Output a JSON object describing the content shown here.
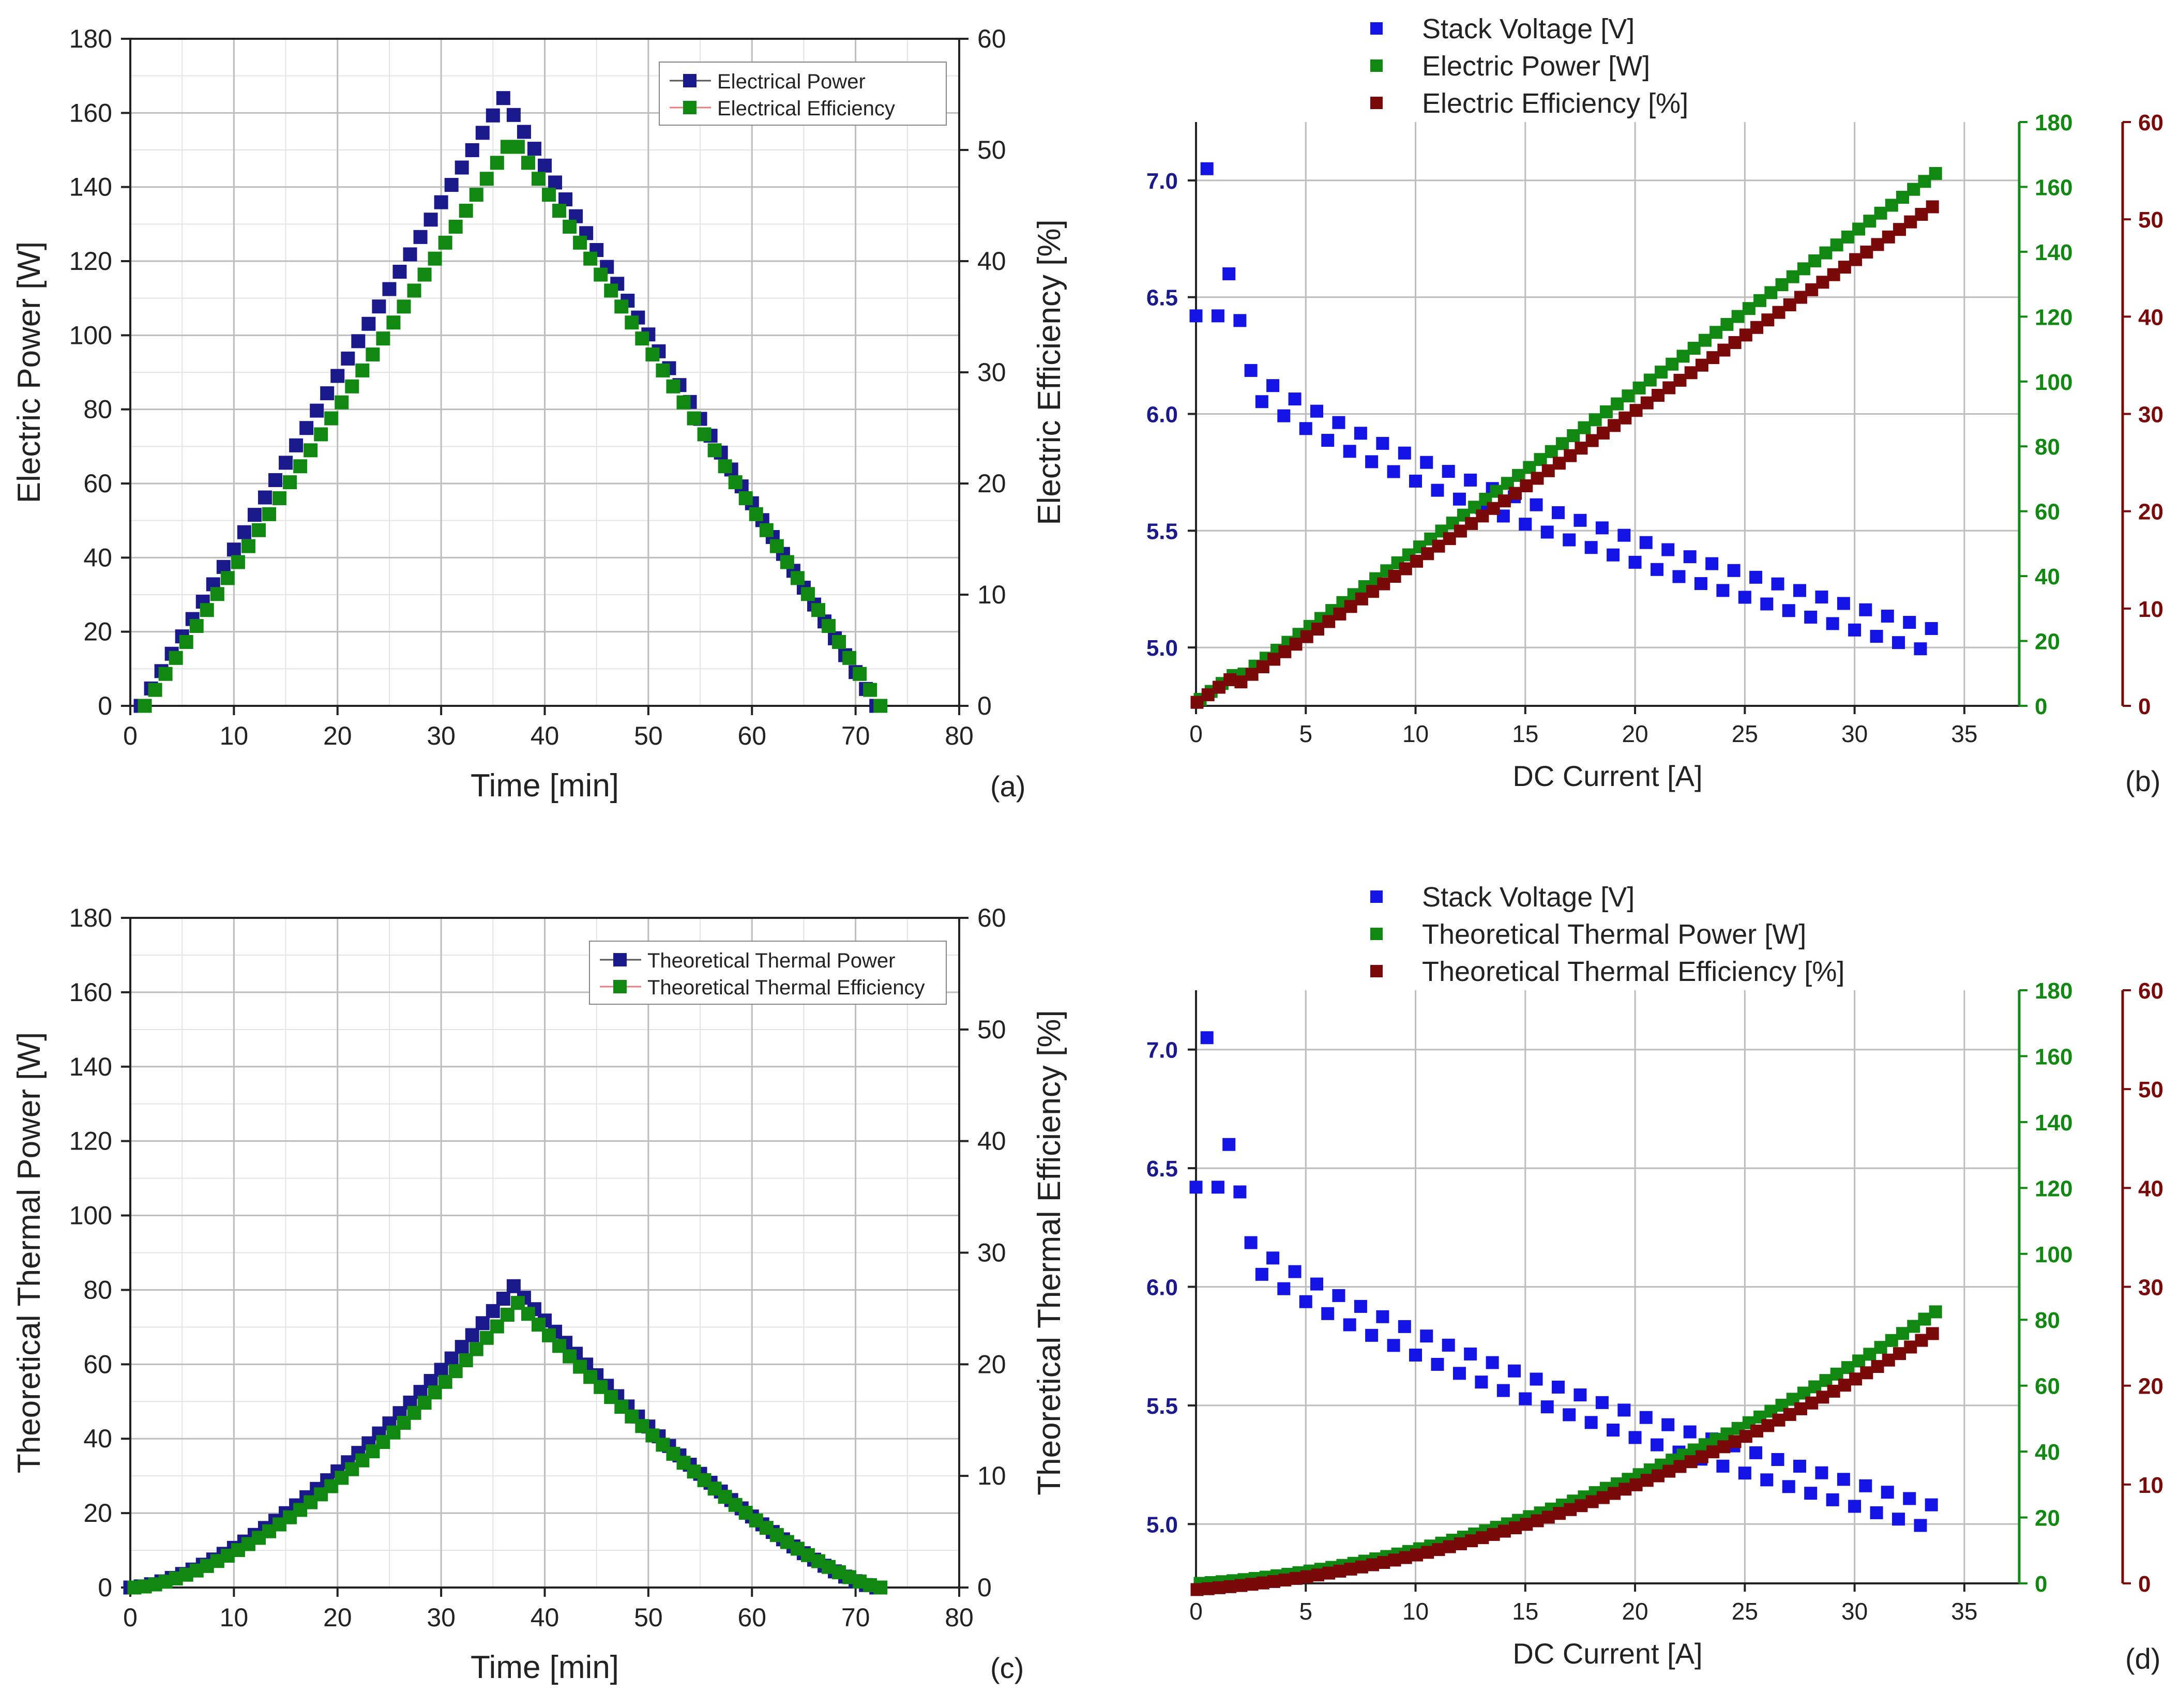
{
  "colors": {
    "navy": "#1a1a8c",
    "blue": "#1414e6",
    "green": "#118811",
    "darkred": "#7a0a0a",
    "grid": "#bdbdbd",
    "minorgrid": "#e3e3e3"
  },
  "chart_data": [
    {
      "id": "a",
      "type": "scatter",
      "panel_label": "(a)",
      "xlabel": "Time [min]",
      "ylabel": "Electric Power [W]",
      "y2label": "Electric Efficiency [%]",
      "xlim": [
        0,
        80
      ],
      "ylim": [
        0,
        180
      ],
      "y2lim": [
        0,
        60
      ],
      "xticks": [
        "0",
        "10",
        "20",
        "30",
        "40",
        "50",
        "60",
        "70",
        "80"
      ],
      "yticks": [
        "0",
        "20",
        "40",
        "60",
        "80",
        "100",
        "120",
        "140",
        "160",
        "180"
      ],
      "y2ticks": [
        "0",
        "10",
        "20",
        "30",
        "40",
        "50",
        "60"
      ],
      "grid": true,
      "legend_position": "top-right",
      "series": [
        {
          "name": "Electrical Power",
          "color": "navy",
          "axis": "left",
          "peak_time": 36,
          "peak_value": 164,
          "start_time": 1,
          "end_time": 72
        },
        {
          "name": "Electrical Efficiency",
          "color": "green",
          "axis": "right",
          "peak_time": 36.5,
          "peak_value": 51,
          "start_time": 1,
          "end_time": 72
        }
      ]
    },
    {
      "id": "b",
      "type": "scatter",
      "panel_label": "(b)",
      "xlabel": "DC Current [A]",
      "xlim": [
        0,
        37.5
      ],
      "ylim": [
        4.75,
        7.25
      ],
      "y2lim": [
        0,
        180
      ],
      "y3lim": [
        0,
        60
      ],
      "xticks": [
        "0",
        "5",
        "10",
        "15",
        "20",
        "25",
        "30",
        "35"
      ],
      "yticks": [
        "5.0",
        "5.5",
        "6.0",
        "6.5",
        "7.0"
      ],
      "y2ticks": [
        "0",
        "20",
        "40",
        "60",
        "80",
        "100",
        "120",
        "140",
        "160",
        "180"
      ],
      "y3ticks": [
        "0",
        "10",
        "20",
        "30",
        "40",
        "50",
        "60"
      ],
      "grid": true,
      "legend_position": "top",
      "series": [
        {
          "name": "Stack Voltage [V]",
          "color": "blue",
          "axis": "left"
        },
        {
          "name": "Electric Power [W]",
          "color": "green",
          "axis": "right"
        },
        {
          "name": "Electric Efficiency [%]",
          "color": "darkred",
          "axis": "far-right"
        }
      ]
    },
    {
      "id": "c",
      "type": "scatter",
      "panel_label": "(c)",
      "xlabel": "Time [min]",
      "ylabel": "Theoretical Thermal Power [W]",
      "y2label": "Theoretical Thermal Efficiency [%]",
      "xlim": [
        0,
        80
      ],
      "ylim": [
        0,
        180
      ],
      "y2lim": [
        0,
        60
      ],
      "xticks": [
        "0",
        "10",
        "20",
        "30",
        "40",
        "50",
        "60",
        "70",
        "80"
      ],
      "yticks": [
        "0",
        "20",
        "40",
        "60",
        "80",
        "100",
        "120",
        "140",
        "160",
        "180"
      ],
      "y2ticks": [
        "0",
        "10",
        "20",
        "30",
        "40",
        "50",
        "60"
      ],
      "grid": true,
      "legend_position": "top-right",
      "series": [
        {
          "name": "Theoretical Thermal Power",
          "color": "navy",
          "axis": "left",
          "peak_time": 37,
          "peak_value": 81,
          "start_time": 0,
          "end_time": 72
        },
        {
          "name": "Theoretical Thermal Efficiency",
          "color": "green",
          "axis": "right",
          "peak_time": 37,
          "peak_value": 25.5,
          "start_time": 0,
          "end_time": 72
        }
      ]
    },
    {
      "id": "d",
      "type": "scatter",
      "panel_label": "(d)",
      "xlabel": "DC Current [A]",
      "xlim": [
        0,
        37.5
      ],
      "ylim": [
        4.75,
        7.25
      ],
      "y2lim": [
        0,
        180
      ],
      "y3lim": [
        0,
        60
      ],
      "xticks": [
        "0",
        "5",
        "10",
        "15",
        "20",
        "25",
        "30",
        "35"
      ],
      "yticks": [
        "5.0",
        "5.5",
        "6.0",
        "6.5",
        "7.0"
      ],
      "y2ticks": [
        "0",
        "20",
        "40",
        "60",
        "80",
        "100",
        "120",
        "140",
        "160",
        "180"
      ],
      "y3ticks": [
        "0",
        "10",
        "20",
        "30",
        "40",
        "50",
        "60"
      ],
      "grid": true,
      "legend_position": "top",
      "series": [
        {
          "name": "Stack Voltage [V]",
          "color": "blue",
          "axis": "left"
        },
        {
          "name": "Theoretical Thermal Power [W]",
          "color": "green",
          "axis": "right"
        },
        {
          "name": "Theoretical Thermal Efficiency [%]",
          "color": "darkred",
          "axis": "far-right"
        }
      ]
    }
  ]
}
